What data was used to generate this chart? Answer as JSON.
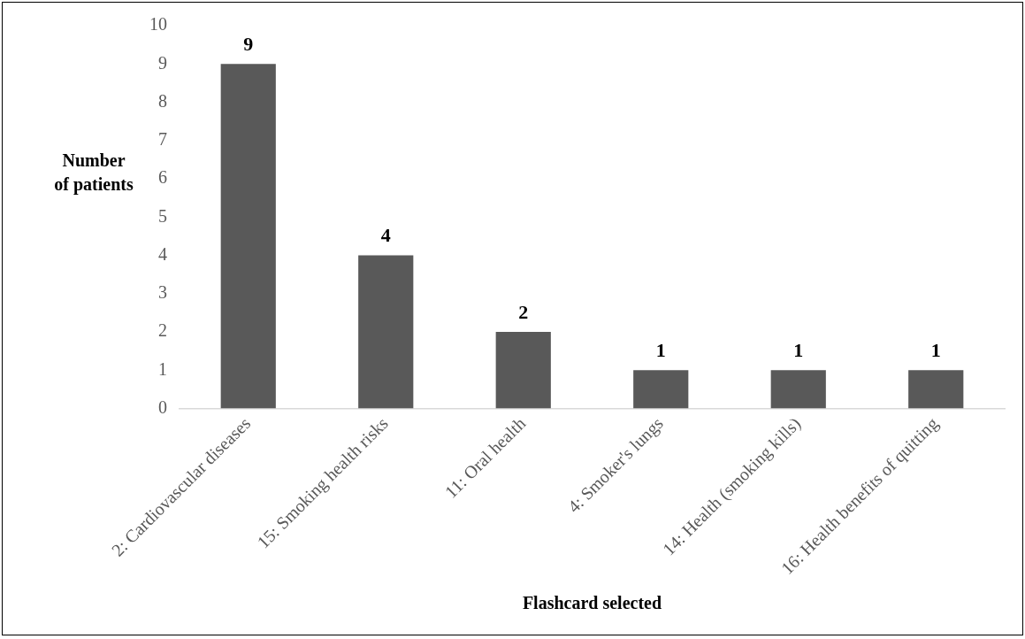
{
  "chart_data": {
    "type": "bar",
    "xlabel": "Flashcard selected",
    "ylabel": "Number of patients",
    "categories": [
      "2: Cardiovascular diseases",
      "15: Smoking health risks",
      "11: Oral health",
      "4: Smoker's lungs",
      "14: Health (smoking kills)",
      "16: Health benefits of quitting"
    ],
    "values": [
      9,
      4,
      2,
      1,
      1,
      1
    ],
    "color": "#595959",
    "ylim": [
      0,
      10
    ],
    "yticks": [
      0,
      1,
      2,
      3,
      4,
      5,
      6,
      7,
      8,
      9,
      10
    ],
    "grid": false,
    "legend": false,
    "data_labels": true
  }
}
